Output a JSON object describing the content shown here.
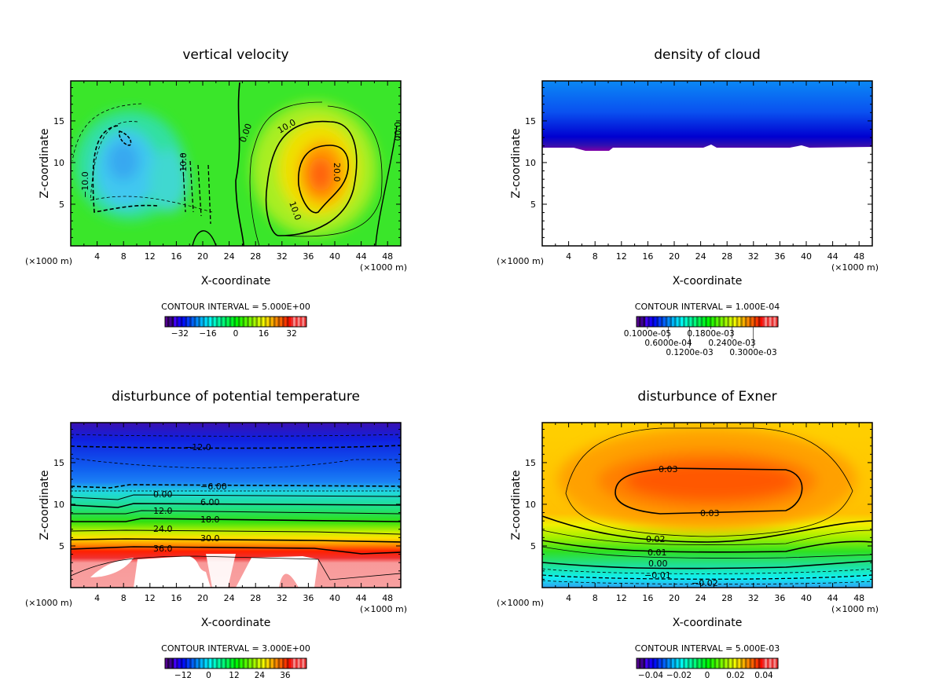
{
  "chart_data": [
    {
      "type": "heatmap",
      "title": "vertical velocity",
      "xlabel": "X-coordinate",
      "ylabel": "Z-coordinate",
      "x_unit": "(×1000 m)",
      "y_unit": "(×1000 m)",
      "xlim": [
        0,
        50
      ],
      "ylim": [
        0,
        19.8
      ],
      "xticks": [
        4,
        8,
        12,
        16,
        20,
        24,
        28,
        32,
        36,
        40,
        44,
        48
      ],
      "yticks": [
        5,
        10,
        15
      ],
      "contour_interval": "CONTOUR INTERVAL = 5.000E+00",
      "colorbar": {
        "range": [
          -40.5,
          40.5
        ],
        "ticks": [
          -32,
          -16,
          0,
          16,
          32
        ],
        "tick_labels": [
          "−32",
          "−16",
          "0",
          "16",
          "32"
        ]
      },
      "contour_labels": [
        "−10.0",
        "−10.0",
        "0.00",
        "10.0",
        "20.0",
        "10.0",
        "0.00"
      ],
      "features": {
        "min_region": {
          "x": 8,
          "z": 10.5,
          "sign": "negative"
        },
        "max_region": {
          "x": 38,
          "z": 8.5,
          "value_approx": 25
        }
      }
    },
    {
      "type": "heatmap",
      "title": "density of cloud",
      "xlabel": "X-coordinate",
      "ylabel": "Z-coordinate",
      "x_unit": "(×1000 m)",
      "y_unit": "(×1000 m)",
      "xlim": [
        0,
        50
      ],
      "ylim": [
        0,
        19.8
      ],
      "xticks": [
        4,
        8,
        12,
        16,
        20,
        24,
        28,
        32,
        36,
        40,
        44,
        48
      ],
      "yticks": [
        5,
        10,
        15
      ],
      "contour_interval": "CONTOUR INTERVAL = 1.000E-04",
      "colorbar": {
        "range": [
          -3e-05,
          0.00037
        ],
        "ticks": [
          1e-06,
          6e-05,
          0.00012,
          0.00018,
          0.00024,
          0.0003
        ],
        "tick_labels": [
          "0.1000e-05",
          "0.6000e-04",
          "0.1200e-03",
          "0.1800e-03",
          "0.2400e-03",
          "0.3000e-03"
        ]
      },
      "contour_labels": [],
      "features": {
        "cloud_layer_z": [
          12,
          19.8
        ]
      }
    },
    {
      "type": "heatmap",
      "title": "disturbunce of potential temperature",
      "xlabel": "X-coordinate",
      "ylabel": "Z-coordinate",
      "x_unit": "(×1000 m)",
      "y_unit": "(×1000 m)",
      "xlim": [
        0,
        50
      ],
      "ylim": [
        0,
        19.8
      ],
      "xticks": [
        4,
        8,
        12,
        16,
        20,
        24,
        28,
        32,
        36,
        40,
        44,
        48
      ],
      "yticks": [
        5,
        10,
        15
      ],
      "contour_interval": "CONTOUR INTERVAL = 3.000E+00",
      "colorbar": {
        "range": [
          -20.5,
          46
        ],
        "ticks": [
          -12,
          0,
          12,
          24,
          36
        ],
        "tick_labels": [
          "−12",
          "0",
          "12",
          "24",
          "36"
        ]
      },
      "contour_labels": [
        "−12.0",
        "−6.00",
        "0.00",
        "6.00",
        "12.0",
        "18.0",
        "24.0",
        "30.0",
        "36.0"
      ]
    },
    {
      "type": "heatmap",
      "title": "disturbunce of Exner",
      "xlabel": "X-coordinate",
      "ylabel": "Z-coordinate",
      "x_unit": "(×1000 m)",
      "y_unit": "(×1000 m)",
      "xlim": [
        0,
        50
      ],
      "ylim": [
        0,
        19.8
      ],
      "xticks": [
        4,
        8,
        12,
        16,
        20,
        24,
        28,
        32,
        36,
        40,
        44,
        48
      ],
      "yticks": [
        5,
        10,
        15
      ],
      "contour_interval": "CONTOUR INTERVAL = 5.000E-03",
      "colorbar": {
        "range": [
          -0.05,
          0.05
        ],
        "ticks": [
          -0.04,
          -0.02,
          0,
          0.02,
          0.04
        ],
        "tick_labels": [
          "−0.04",
          "−0.02",
          "0",
          "0.02",
          "0.04"
        ]
      },
      "contour_labels": [
        "0.03",
        "0.03",
        "0.02",
        "0.01",
        "0.00",
        "−0.01",
        "−0.02"
      ]
    }
  ]
}
